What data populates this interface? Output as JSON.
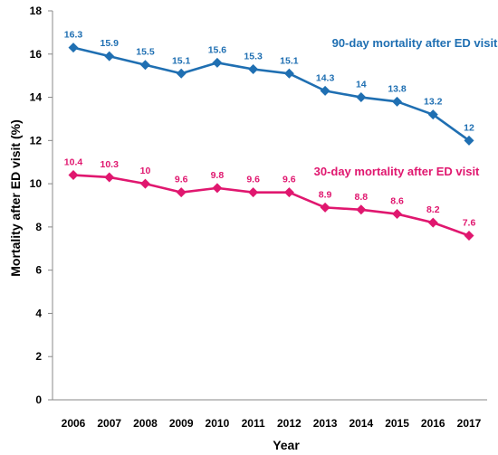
{
  "chart_data": {
    "type": "line",
    "title": "",
    "xlabel": "Year",
    "ylabel": "Mortality after ED visit (%)",
    "categories": [
      "2006",
      "2007",
      "2008",
      "2009",
      "2010",
      "2011",
      "2012",
      "2013",
      "2014",
      "2015",
      "2016",
      "2017"
    ],
    "ylim": [
      0,
      18
    ],
    "yticks": [
      0,
      2,
      4,
      6,
      8,
      10,
      12,
      14,
      16,
      18
    ],
    "grid": false,
    "legend": "none",
    "series": [
      {
        "name": "90-day mortality after ED visit",
        "color": "#1f6fb2",
        "marker": "diamond",
        "values": [
          16.3,
          15.9,
          15.5,
          15.1,
          15.6,
          15.3,
          15.1,
          14.3,
          14,
          13.8,
          13.2,
          12
        ],
        "labels": [
          "16.3",
          "15.9",
          "15.5",
          "15.1",
          "15.6",
          "15.3",
          "15.1",
          "14.3",
          "14",
          "13.8",
          "13.2",
          "12"
        ]
      },
      {
        "name": "30-day mortality after ED visit",
        "color": "#e0176f",
        "marker": "diamond",
        "values": [
          10.4,
          10.3,
          10,
          9.6,
          9.8,
          9.6,
          9.6,
          8.9,
          8.8,
          8.6,
          8.2,
          7.6
        ],
        "labels": [
          "10.4",
          "10.3",
          "10",
          "9.6",
          "9.8",
          "9.6",
          "9.6",
          "8.9",
          "8.8",
          "8.6",
          "8.2",
          "7.6"
        ]
      }
    ]
  }
}
